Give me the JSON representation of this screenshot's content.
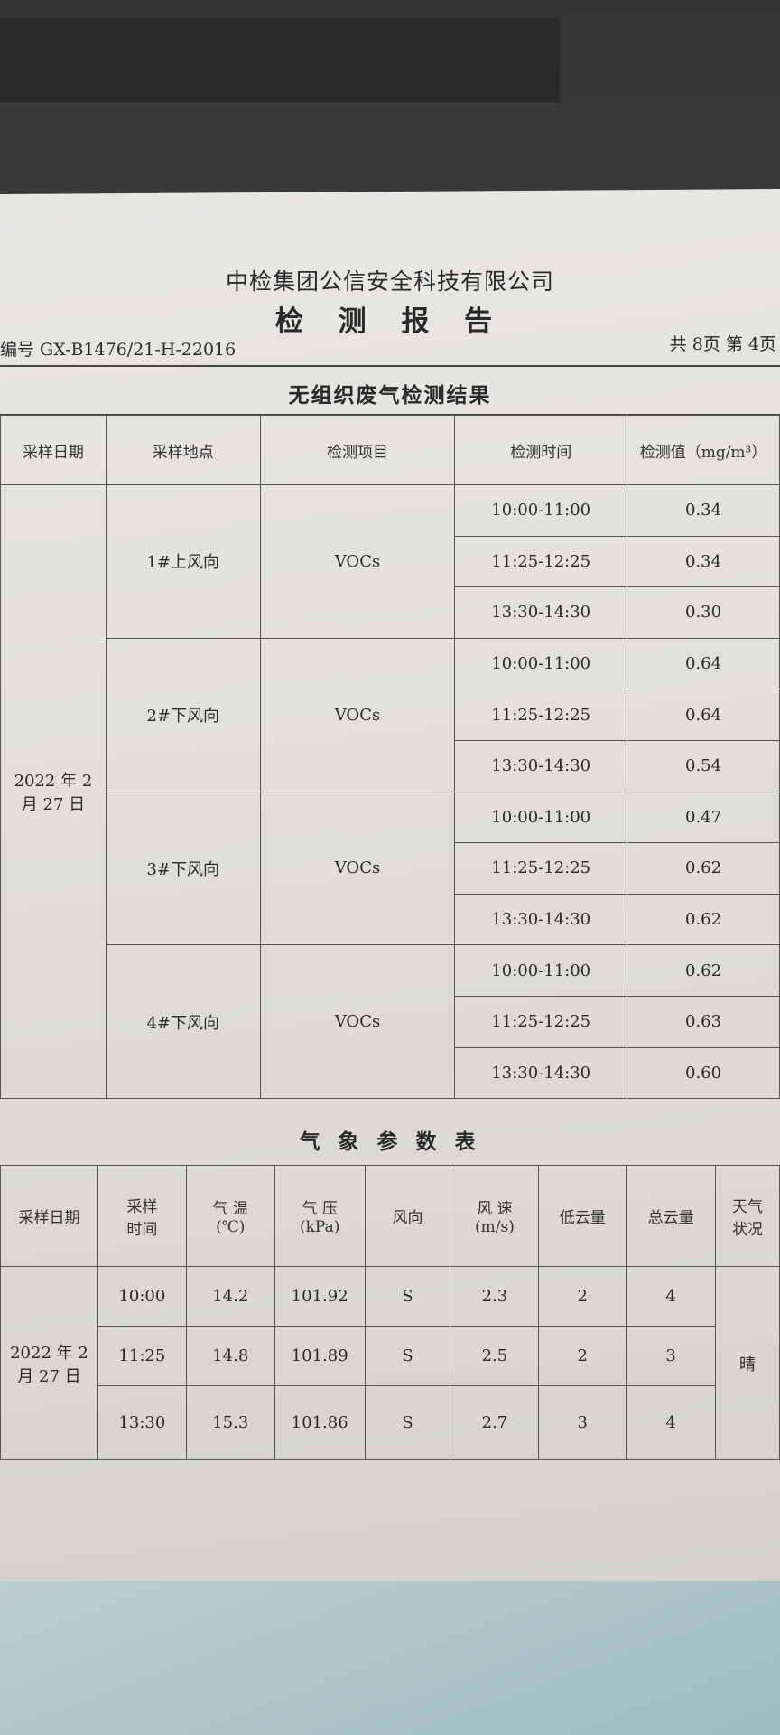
{
  "header": {
    "company": "中检集团公信安全科技有限公司",
    "report_title": "检 测 报 告",
    "serial": "编号 GX-B1476/21-H-22016",
    "pages": "共 8页   第 4页"
  },
  "voc": {
    "title": "无组织废气检测结果",
    "columns": [
      "采样日期",
      "采样地点",
      "检测项目",
      "检测时间",
      "检测值（mg/m³）"
    ],
    "date": "2022 年 2 月 27 日",
    "groups": [
      {
        "site": "1#上风向",
        "item": "VOCs",
        "rows": [
          [
            "10:00-11:00",
            "0.34"
          ],
          [
            "11:25-12:25",
            "0.34"
          ],
          [
            "13:30-14:30",
            "0.30"
          ]
        ]
      },
      {
        "site": "2#下风向",
        "item": "VOCs",
        "rows": [
          [
            "10:00-11:00",
            "0.64"
          ],
          [
            "11:25-12:25",
            "0.64"
          ],
          [
            "13:30-14:30",
            "0.54"
          ]
        ]
      },
      {
        "site": "3#下风向",
        "item": "VOCs",
        "rows": [
          [
            "10:00-11:00",
            "0.47"
          ],
          [
            "11:25-12:25",
            "0.62"
          ],
          [
            "13:30-14:30",
            "0.62"
          ]
        ]
      },
      {
        "site": "4#下风向",
        "item": "VOCs",
        "rows": [
          [
            "10:00-11:00",
            "0.62"
          ],
          [
            "11:25-12:25",
            "0.63"
          ],
          [
            "13:30-14:30",
            "0.60"
          ]
        ]
      }
    ]
  },
  "weather": {
    "title": "气 象 参 数 表",
    "columns": [
      "采样日期",
      "采样\n时间",
      "气 温\n(℃)",
      "气 压\n(kPa)",
      "风向",
      "风 速\n(m/s)",
      "低云量",
      "总云量",
      "天气\n状况"
    ],
    "date": "2022 年 2 月 27 日",
    "condition": "晴",
    "rows": [
      [
        "10:00",
        "14.2",
        "101.92",
        "S",
        "2.3",
        "2",
        "4"
      ],
      [
        "11:25",
        "14.8",
        "101.89",
        "S",
        "2.5",
        "2",
        "3"
      ],
      [
        "13:30",
        "15.3",
        "101.86",
        "S",
        "2.7",
        "3",
        "4"
      ]
    ]
  }
}
